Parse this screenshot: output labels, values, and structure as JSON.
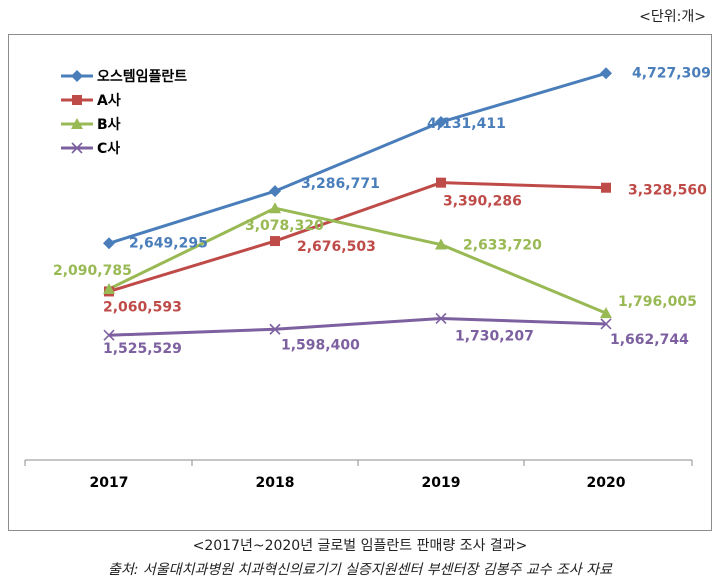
{
  "unit_label": "<단위:개>",
  "caption": "<2017년~2020년 글로벌 임플란트 판매량 조사 결과>",
  "source": "출처: 서울대치과병원 치과혁신의료기기 실증지원센터 부센터장 김봉주 교수 조사 자료",
  "chart_data": {
    "type": "line",
    "categories": [
      "2017",
      "2018",
      "2019",
      "2020"
    ],
    "series": [
      {
        "name": "오스템임플란트",
        "color": "#4a7ebb",
        "marker": "diamond",
        "values": [
          2649295,
          3286771,
          4131411,
          4727309
        ],
        "labels": [
          "2,649,295",
          "3,286,771",
          "4,131,411",
          "4,727,309"
        ]
      },
      {
        "name": "A사",
        "color": "#be4b48",
        "marker": "square",
        "values": [
          2060593,
          2676503,
          3390286,
          3328560
        ],
        "labels": [
          "2,060,593",
          "2,676,503",
          "3,390,286",
          "3,328,560"
        ]
      },
      {
        "name": "B사",
        "color": "#98b954",
        "marker": "triangle",
        "values": [
          2090785,
          3078320,
          2633720,
          1796005
        ],
        "labels": [
          "2,090,785",
          "3,078,320",
          "2,633,720",
          "1,796,005"
        ]
      },
      {
        "name": "C사",
        "color": "#7d60a0",
        "marker": "x",
        "values": [
          1525529,
          1598400,
          1730207,
          1662744
        ],
        "labels": [
          "1,525,529",
          "1,598,400",
          "1,730,207",
          "1,662,744"
        ]
      }
    ],
    "ylim": [
      0,
      5000000
    ],
    "legend": "top-left",
    "grid": false
  }
}
